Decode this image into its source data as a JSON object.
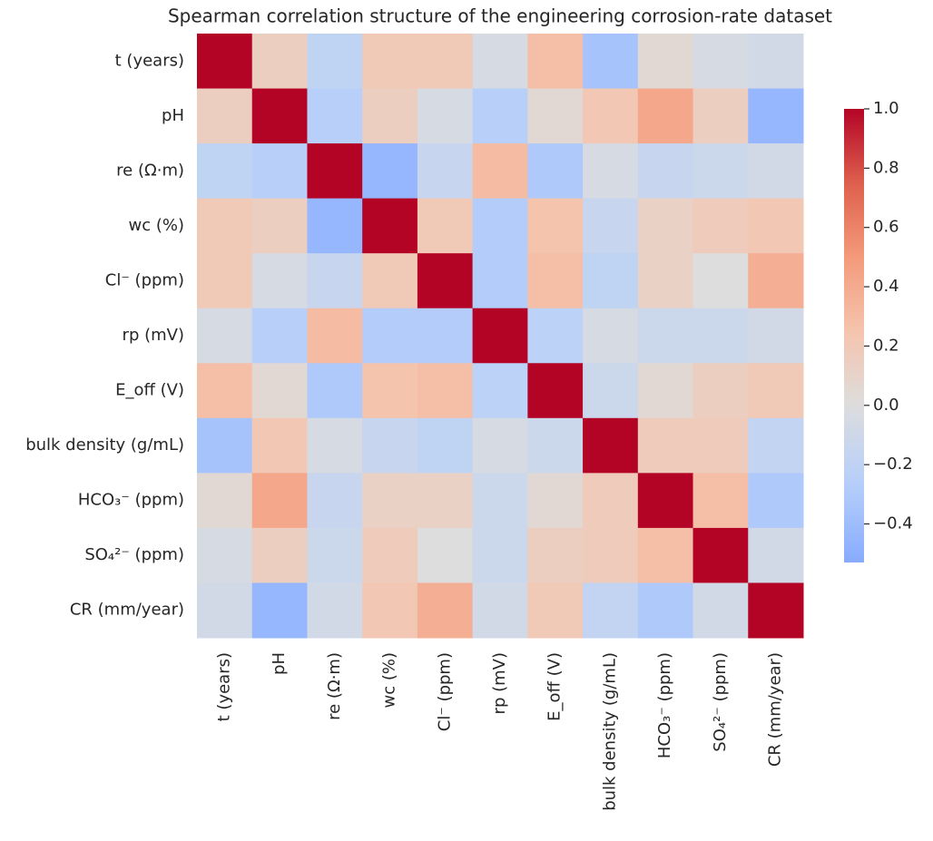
{
  "chart_data": {
    "type": "heatmap",
    "title": "Spearman correlation structure of the engineering corrosion-rate dataset",
    "categories": [
      "t (years)",
      "pH",
      "re (Ω·m)",
      "wc (%)",
      "Cl⁻ (ppm)",
      "rp (mV)",
      "E_off (V)",
      "bulk density (g/mL)",
      "HCO₃⁻ (ppm)",
      "SO₄²⁻ (ppm)",
      "CR (mm/year)"
    ],
    "values": [
      [
        1,
        0.15,
        -0.2,
        0.2,
        0.2,
        -0.05,
        0.28,
        -0.35,
        0.05,
        -0.05,
        -0.08
      ],
      [
        0.15,
        1,
        -0.25,
        0.15,
        -0.05,
        -0.25,
        0.05,
        0.22,
        0.42,
        0.15,
        -0.45
      ],
      [
        -0.2,
        -0.25,
        1,
        -0.45,
        -0.15,
        0.3,
        -0.3,
        -0.05,
        -0.15,
        -0.12,
        -0.08
      ],
      [
        0.2,
        0.15,
        -0.45,
        1,
        0.2,
        -0.28,
        0.25,
        -0.15,
        0.12,
        0.18,
        0.22
      ],
      [
        0.2,
        -0.05,
        -0.15,
        0.2,
        1,
        -0.28,
        0.28,
        -0.2,
        0.12,
        0,
        0.38
      ],
      [
        -0.05,
        -0.25,
        0.3,
        -0.28,
        -0.28,
        1,
        -0.22,
        -0.05,
        -0.12,
        -0.12,
        -0.08
      ],
      [
        0.28,
        0.05,
        -0.3,
        0.25,
        0.28,
        -0.22,
        1,
        -0.12,
        0.05,
        0.15,
        0.2
      ],
      [
        -0.35,
        0.22,
        -0.05,
        -0.15,
        -0.2,
        -0.05,
        -0.12,
        1,
        0.18,
        0.18,
        -0.18
      ],
      [
        0.05,
        0.42,
        -0.15,
        0.12,
        0.12,
        -0.12,
        0.05,
        0.18,
        1,
        0.28,
        -0.3
      ],
      [
        -0.05,
        0.15,
        -0.12,
        0.18,
        0,
        -0.12,
        0.15,
        0.18,
        0.28,
        1,
        -0.08
      ],
      [
        -0.08,
        -0.45,
        -0.08,
        0.22,
        0.38,
        -0.08,
        0.2,
        -0.18,
        -0.3,
        -0.08,
        1
      ]
    ],
    "colormap": "coolwarm",
    "center": 0,
    "clim": [
      -0.53,
      1
    ],
    "cticks": [
      {
        "value": -0.4,
        "label": "−0.4"
      },
      {
        "value": -0.2,
        "label": "−0.2"
      },
      {
        "value": 0,
        "label": "0.0"
      },
      {
        "value": 0.2,
        "label": "0.2"
      },
      {
        "value": 0.4,
        "label": "0.4"
      },
      {
        "value": 0.6,
        "label": "0.6"
      },
      {
        "value": 0.8,
        "label": "0.8"
      },
      {
        "value": 1,
        "label": "1.0"
      }
    ]
  }
}
